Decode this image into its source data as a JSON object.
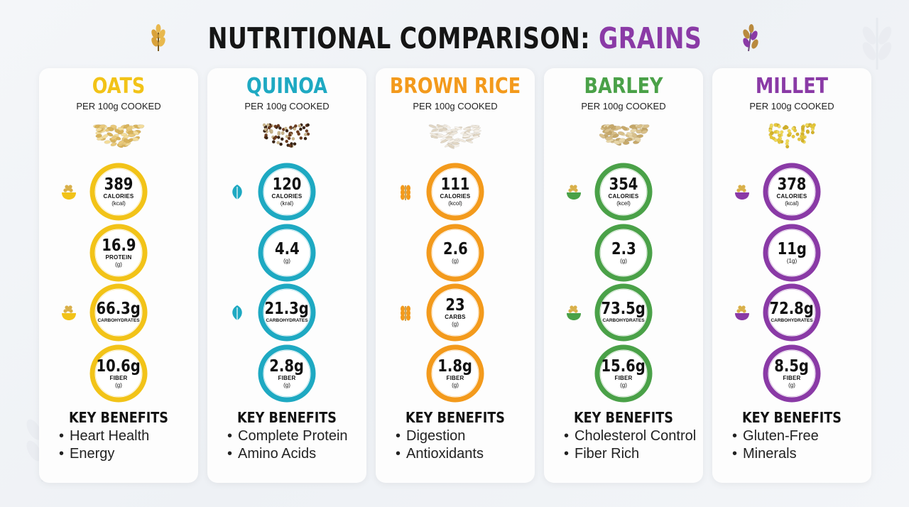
{
  "title": {
    "main": "NUTRITIONAL COMPARISON:",
    "accent": "GRAINS",
    "accent_color": "#8a3aa6"
  },
  "chart_data": {
    "type": "table",
    "title": "NUTRITIONAL COMPARISON: GRAINS",
    "subtitle": "PER 100g COOKED",
    "grains": [
      {
        "name": "OATS",
        "color": "#f2c318",
        "serving": "PER 100g COOKED",
        "metrics": [
          {
            "value": "389",
            "label": "CALORIES",
            "unit": "(kcal)"
          },
          {
            "value": "16.9",
            "label": "PROTEIN",
            "unit": "(g)"
          },
          {
            "value": "66.3g",
            "label": "CARBOHYDRATES",
            "unit": ""
          },
          {
            "value": "10.6g",
            "label": "FIBER",
            "unit": "(g)"
          }
        ],
        "benefits_title": "KEY BENEFITS",
        "benefits": [
          "Heart Health",
          "Energy"
        ],
        "icon": "grain-bowl-icon"
      },
      {
        "name": "QUINOA",
        "color": "#1ea9c2",
        "serving": "PER 100g COOKED",
        "metrics": [
          {
            "value": "120",
            "label": "CALORIES",
            "unit": "(kral)"
          },
          {
            "value": "4.4",
            "label": "",
            "unit": "(g)"
          },
          {
            "value": "21.3g",
            "label": "CARBOHYDRATES",
            "unit": ""
          },
          {
            "value": "2.8g",
            "label": "FIBER",
            "unit": "(g)"
          }
        ],
        "benefits_title": "KEY BENEFITS",
        "benefits": [
          "Complete Protein",
          "Amino Acids"
        ],
        "icon": "leaf-icon"
      },
      {
        "name": "BROWN RICE",
        "color": "#f39a1c",
        "serving": "PER 100g COOKED",
        "metrics": [
          {
            "value": "111",
            "label": "CALORIES",
            "unit": "(kcol)"
          },
          {
            "value": "2.6",
            "label": "",
            "unit": "(g)"
          },
          {
            "value": "23",
            "label": "CARBS",
            "unit": "(g)"
          },
          {
            "value": "1.8g",
            "label": "FIBER",
            "unit": "(g)"
          }
        ],
        "benefits_title": "KEY BENEFITS",
        "benefits": [
          "Digestion",
          "Antioxidants"
        ],
        "icon": "wheat-icon"
      },
      {
        "name": "BARLEY",
        "color": "#4aa148",
        "serving": "PER 100g COOKED",
        "metrics": [
          {
            "value": "354",
            "label": "CALORIES",
            "unit": "(kcel)"
          },
          {
            "value": "2.3",
            "label": "",
            "unit": "(g)"
          },
          {
            "value": "73.5g",
            "label": "CARBOHYDRATES",
            "unit": ""
          },
          {
            "value": "15.6g",
            "label": "FIBER",
            "unit": "(g)"
          }
        ],
        "benefits_title": "KEY BENEFITS",
        "benefits": [
          "Cholesterol Control",
          "Fiber Rich"
        ],
        "icon": "herb-bowl-icon"
      },
      {
        "name": "MILLET",
        "color": "#8a3aa6",
        "serving": "PER 100g COOKED",
        "metrics": [
          {
            "value": "378",
            "label": "CALORIES",
            "unit": "(kcal)"
          },
          {
            "value": "11g",
            "label": "",
            "unit": "(1g)"
          },
          {
            "value": "72.8g",
            "label": "CARBOHYDRATES",
            "unit": ""
          },
          {
            "value": "8.5g",
            "label": "FIBER",
            "unit": "(g)"
          }
        ],
        "benefits_title": "KEY BENEFITS",
        "benefits": [
          "Gluten-Free",
          "Minerals"
        ],
        "icon": "millet-bowl-icon"
      }
    ]
  }
}
